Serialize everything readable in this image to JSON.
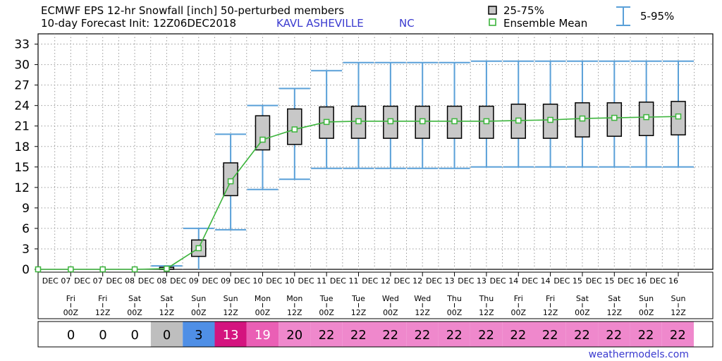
{
  "header": {
    "title_line1": "ECMWF EPS 12-hr Snowfall [inch]  50-perturbed members",
    "title_line2": "10-day Forecast Init: 12Z06DEC2018",
    "station": "KAVL  ASHEVILLE",
    "state": "NC"
  },
  "legend": {
    "box_label": "25-75%",
    "mean_label": "Ensemble Mean",
    "whisker_label": "5-95%"
  },
  "credit": "weathermodels.com",
  "colors": {
    "whisker": "#5aa0d8",
    "box_fill": "#c8c8c8",
    "mean": "#3cb43c",
    "grid": "#9a9a9a"
  },
  "chart_data": {
    "type": "box",
    "title": "ECMWF EPS 12-hr Snowfall [inch]  50-perturbed members",
    "ylim": [
      0,
      34
    ],
    "yticks": [
      0,
      3,
      6,
      9,
      12,
      15,
      18,
      21,
      24,
      27,
      30,
      33
    ],
    "grid": true,
    "legend_position": "top-right",
    "dates": [
      "DEC 07",
      "DEC 07",
      "DEC 08",
      "DEC 08",
      "DEC 09",
      "DEC 09",
      "DEC 10",
      "DEC 10",
      "DEC 11",
      "DEC 11",
      "DEC 12",
      "DEC 12",
      "DEC 13",
      "DEC 13",
      "DEC 14",
      "DEC 14",
      "DEC 15",
      "DEC 15",
      "DEC 16",
      "DEC 16"
    ],
    "weekdays": [
      "Fri",
      "Fri",
      "Sat",
      "Sat",
      "Sun",
      "Sun",
      "Mon",
      "Mon",
      "Tue",
      "Tue",
      "Wed",
      "Wed",
      "Thu",
      "Thu",
      "Fri",
      "Fri",
      "Sat",
      "Sat",
      "Sun",
      "Sun"
    ],
    "hours": [
      "00Z",
      "12Z",
      "00Z",
      "12Z",
      "00Z",
      "12Z",
      "00Z",
      "12Z",
      "00Z",
      "12Z",
      "00Z",
      "12Z",
      "00Z",
      "12Z",
      "00Z",
      "12Z",
      "00Z",
      "12Z",
      "00Z",
      "12Z"
    ],
    "p5": [
      0,
      0,
      0,
      0,
      0,
      5.8,
      11.7,
      13.2,
      14.8,
      14.8,
      14.8,
      14.8,
      14.8,
      15.0,
      15.0,
      15.0,
      15.0,
      15.0,
      15.0,
      15.0
    ],
    "p25": [
      0,
      0,
      0,
      0,
      1.9,
      10.8,
      17.5,
      18.3,
      19.2,
      19.2,
      19.2,
      19.2,
      19.2,
      19.2,
      19.2,
      19.2,
      19.4,
      19.5,
      19.6,
      19.7
    ],
    "mean": [
      0,
      0,
      0,
      0.1,
      3.1,
      12.9,
      19.0,
      20.5,
      21.6,
      21.7,
      21.7,
      21.7,
      21.7,
      21.7,
      21.8,
      21.9,
      22.1,
      22.2,
      22.3,
      22.4
    ],
    "p75": [
      0,
      0,
      0,
      0.3,
      4.3,
      15.6,
      22.5,
      23.5,
      23.8,
      23.9,
      23.9,
      23.9,
      23.9,
      23.9,
      24.2,
      24.2,
      24.4,
      24.4,
      24.5,
      24.6
    ],
    "p95": [
      0,
      0,
      0,
      0.5,
      6.0,
      19.8,
      24.0,
      26.5,
      29.1,
      30.3,
      30.3,
      30.3,
      30.3,
      30.5,
      30.5,
      30.5,
      30.5,
      30.5,
      30.5,
      30.5
    ],
    "daily_totals": [
      "0",
      "0",
      "0",
      "0",
      "3",
      "13",
      "19",
      "20",
      "22",
      "22",
      "22",
      "22",
      "22",
      "22",
      "22",
      "22",
      "22",
      "22",
      "22",
      "22"
    ],
    "total_colors": [
      "#ffffff",
      "#ffffff",
      "#ffffff",
      "#bebebe",
      "#4f8fe6",
      "#d4147f",
      "#ea5fb5",
      "#ef88cc",
      "#ef88cc",
      "#ef88cc",
      "#ef88cc",
      "#ef88cc",
      "#ef88cc",
      "#ef88cc",
      "#ef88cc",
      "#ef88cc",
      "#ef88cc",
      "#ef88cc",
      "#ef88cc",
      "#ef88cc"
    ],
    "total_text_colors": [
      "#000000",
      "#000000",
      "#000000",
      "#000000",
      "#000000",
      "#ffffff",
      "#ffffff",
      "#000000",
      "#000000",
      "#000000",
      "#000000",
      "#000000",
      "#000000",
      "#000000",
      "#000000",
      "#000000",
      "#000000",
      "#000000",
      "#000000",
      "#000000"
    ]
  }
}
